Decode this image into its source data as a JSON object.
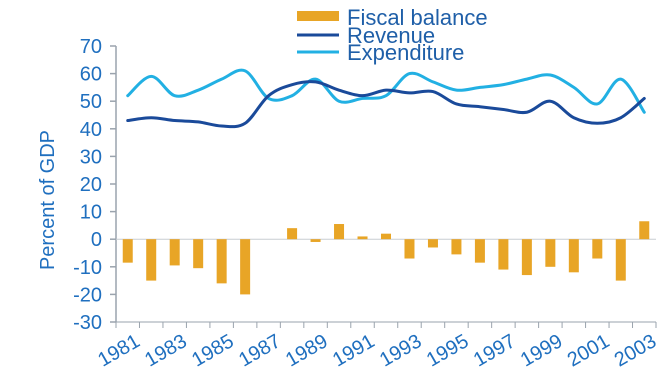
{
  "chart_data": {
    "type": "bar+line",
    "ylabel": "Percent of GDP",
    "ylim": [
      -30,
      70
    ],
    "yticks": [
      -30,
      -20,
      -10,
      0,
      10,
      20,
      30,
      40,
      50,
      60,
      70
    ],
    "x_tick_labels": [
      "1981",
      "1983",
      "1985",
      "1987",
      "1989",
      "1991",
      "1993",
      "1995",
      "1997",
      "1999",
      "2001",
      "2003"
    ],
    "years": [
      1981,
      1982,
      1983,
      1984,
      1985,
      1986,
      1987,
      1988,
      1989,
      1990,
      1991,
      1992,
      1993,
      1994,
      1995,
      1996,
      1997,
      1998,
      1999,
      2000,
      2001,
      2002,
      2003
    ],
    "legend": [
      "Fiscal balance",
      "Revenue",
      "Expenditure"
    ],
    "series": [
      {
        "name": "Fiscal balance",
        "type": "bar",
        "color": "#e8a526",
        "values": [
          -8.5,
          -15,
          -9.5,
          -10.5,
          -16,
          -20,
          0,
          4,
          -1,
          5.5,
          1,
          2,
          -7,
          -3,
          -5.5,
          -8.5,
          -11,
          -13,
          -10,
          -12,
          -7,
          -15,
          6.5
        ]
      },
      {
        "name": "Revenue",
        "type": "line",
        "color": "#1a4a9a",
        "values": [
          43,
          44,
          43,
          42.5,
          41,
          42,
          52,
          56,
          57,
          54,
          52,
          54,
          53,
          53.5,
          49,
          48,
          47,
          46,
          50,
          44,
          42,
          44,
          51
        ]
      },
      {
        "name": "Expenditure",
        "type": "line",
        "color": "#22b0e3",
        "values": [
          52,
          59,
          52,
          54,
          58,
          61,
          51,
          52,
          58,
          50,
          51,
          52,
          60,
          57,
          54,
          55,
          56,
          58,
          59.5,
          55,
          49,
          58,
          46
        ]
      }
    ]
  }
}
